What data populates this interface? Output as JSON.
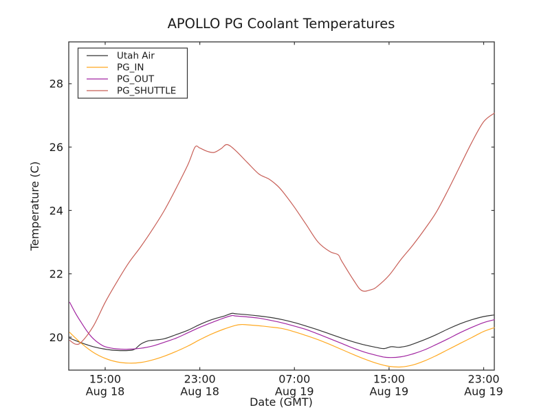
{
  "chart_data": {
    "type": "line",
    "title": "APOLLO PG Coolant Temperatures",
    "xlabel": "Date (GMT)",
    "ylabel": "Temperature (C)",
    "grid": false,
    "legend_position": "upper-left",
    "x_axis": {
      "unit": "hours since Aug 18 00:00 GMT",
      "range": [
        11.92,
        47.9
      ],
      "ticks": [
        {
          "hour": 15,
          "time": "15:00",
          "date": "Aug 18"
        },
        {
          "hour": 23,
          "time": "23:00",
          "date": "Aug 18"
        },
        {
          "hour": 31,
          "time": "07:00",
          "date": "Aug 19"
        },
        {
          "hour": 39,
          "time": "15:00",
          "date": "Aug 19"
        },
        {
          "hour": 47,
          "time": "23:00",
          "date": "Aug 19"
        }
      ]
    },
    "y_axis": {
      "range": [
        18.96,
        29.32
      ],
      "ticks": [
        20,
        22,
        24,
        26,
        28
      ]
    },
    "series": [
      {
        "name": "Utah Air",
        "color": "#333333",
        "hours": [
          12,
          13,
          14,
          15,
          16,
          17,
          17.5,
          18,
          18.6,
          19,
          20,
          21,
          22,
          23,
          24,
          25,
          25.7,
          26,
          27,
          28,
          29,
          30,
          31,
          32,
          33,
          34,
          35,
          36,
          37,
          38,
          38.6,
          39.2,
          39.8,
          40.5,
          41,
          42,
          43,
          44,
          45,
          46,
          47,
          47.9
        ],
        "values": [
          19.97,
          19.82,
          19.7,
          19.62,
          19.58,
          19.58,
          19.62,
          19.78,
          19.88,
          19.9,
          19.95,
          20.08,
          20.22,
          20.4,
          20.55,
          20.66,
          20.75,
          20.74,
          20.71,
          20.67,
          20.62,
          20.55,
          20.46,
          20.35,
          20.23,
          20.1,
          19.97,
          19.85,
          19.75,
          19.67,
          19.64,
          19.7,
          19.68,
          19.72,
          19.78,
          19.92,
          20.08,
          20.26,
          20.42,
          20.55,
          20.65,
          20.7
        ]
      },
      {
        "name": "PG_IN",
        "color": "#ffa81f",
        "hours": [
          12,
          13,
          14,
          15,
          16,
          17,
          18,
          19,
          20,
          21,
          22,
          23,
          24,
          25,
          26,
          26.5,
          27,
          28,
          29,
          30,
          31,
          32,
          33,
          34,
          35,
          36,
          37,
          38,
          39,
          40,
          41,
          42,
          43,
          44,
          45,
          46,
          47,
          47.9
        ],
        "values": [
          20.15,
          19.8,
          19.52,
          19.33,
          19.22,
          19.18,
          19.2,
          19.28,
          19.4,
          19.55,
          19.72,
          19.92,
          20.1,
          20.25,
          20.37,
          20.4,
          20.39,
          20.36,
          20.32,
          20.27,
          20.17,
          20.05,
          19.92,
          19.77,
          19.61,
          19.45,
          19.3,
          19.17,
          19.08,
          19.06,
          19.12,
          19.25,
          19.42,
          19.61,
          19.8,
          19.99,
          20.18,
          20.3
        ]
      },
      {
        "name": "PG_OUT",
        "color": "#a023a0",
        "hours": [
          12,
          12.5,
          13,
          13.5,
          14,
          14.5,
          15,
          16,
          17,
          18,
          19,
          20,
          21,
          22,
          23,
          24,
          25,
          25.7,
          26,
          27,
          28,
          29,
          30,
          31,
          32,
          33,
          34,
          35,
          36,
          37,
          38,
          38.8,
          40,
          41,
          42,
          43,
          44,
          45,
          46,
          47,
          47.9
        ],
        "values": [
          21.1,
          20.75,
          20.45,
          20.17,
          19.95,
          19.8,
          19.7,
          19.63,
          19.62,
          19.65,
          19.72,
          19.84,
          19.97,
          20.14,
          20.31,
          20.46,
          20.6,
          20.68,
          20.67,
          20.64,
          20.6,
          20.53,
          20.45,
          20.35,
          20.24,
          20.1,
          19.95,
          19.8,
          19.65,
          19.52,
          19.42,
          19.36,
          19.38,
          19.47,
          19.6,
          19.77,
          19.95,
          20.14,
          20.31,
          20.46,
          20.55
        ]
      },
      {
        "name": "PG_SHUTTLE",
        "color": "#c75d55",
        "hours": [
          12,
          12.5,
          13,
          14,
          15,
          16,
          17,
          18,
          19,
          20,
          21,
          22,
          22.6,
          23,
          23.6,
          24.2,
          24.8,
          25.3,
          26,
          27,
          28,
          28.8,
          29.5,
          30,
          31,
          32,
          33,
          34,
          34.7,
          35,
          36,
          36.7,
          37.5,
          38,
          39,
          40,
          41,
          42,
          43,
          44,
          45,
          46,
          47,
          47.9
        ],
        "values": [
          19.9,
          19.78,
          19.85,
          20.35,
          21.1,
          21.75,
          22.35,
          22.85,
          23.4,
          24.0,
          24.7,
          25.45,
          26.0,
          25.97,
          25.87,
          25.83,
          25.95,
          26.08,
          25.9,
          25.52,
          25.15,
          25.0,
          24.8,
          24.6,
          24.1,
          23.55,
          23.0,
          22.7,
          22.6,
          22.4,
          21.8,
          21.47,
          21.5,
          21.6,
          21.95,
          22.45,
          22.9,
          23.4,
          23.95,
          24.65,
          25.4,
          26.15,
          26.8,
          27.07
        ]
      }
    ]
  }
}
